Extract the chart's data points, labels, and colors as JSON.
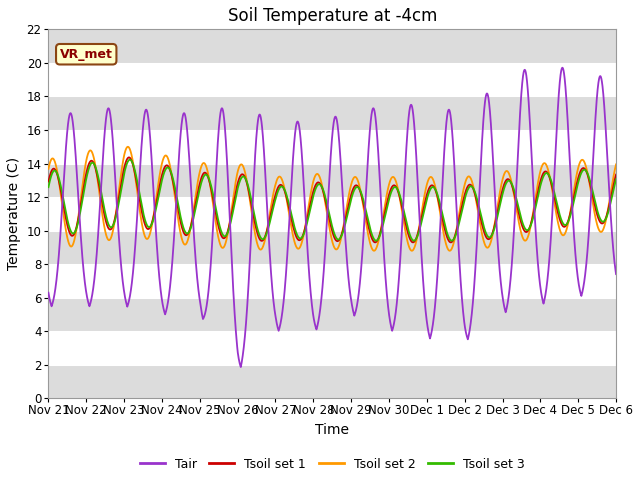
{
  "title": "Soil Temperature at -4cm",
  "xlabel": "Time",
  "ylabel": "Temperature (C)",
  "ylim": [
    0,
    22
  ],
  "yticks": [
    0,
    2,
    4,
    6,
    8,
    10,
    12,
    14,
    16,
    18,
    20,
    22
  ],
  "label_text": "VR_met",
  "colors": {
    "Tair": "#9933cc",
    "Tsoil1": "#cc0000",
    "Tsoil2": "#ff9900",
    "Tsoil3": "#33bb00"
  },
  "legend_labels": [
    "Tair",
    "Tsoil set 1",
    "Tsoil set 2",
    "Tsoil set 3"
  ],
  "background_color": "#ffffff",
  "band_color": "#dcdcdc",
  "title_fontsize": 12,
  "axis_fontsize": 10,
  "tick_fontsize": 8.5,
  "total_days": 15,
  "xtick_labels": [
    "Nov 21",
    "Nov 22",
    "Nov 23",
    "Nov 24",
    "Nov 25",
    "Nov 26",
    "Nov 27",
    "Nov 28",
    "Nov 29",
    "Nov 30",
    "Dec 1",
    "Dec 2",
    "Dec 3",
    "Dec 4",
    "Dec 5",
    "Dec 6"
  ]
}
